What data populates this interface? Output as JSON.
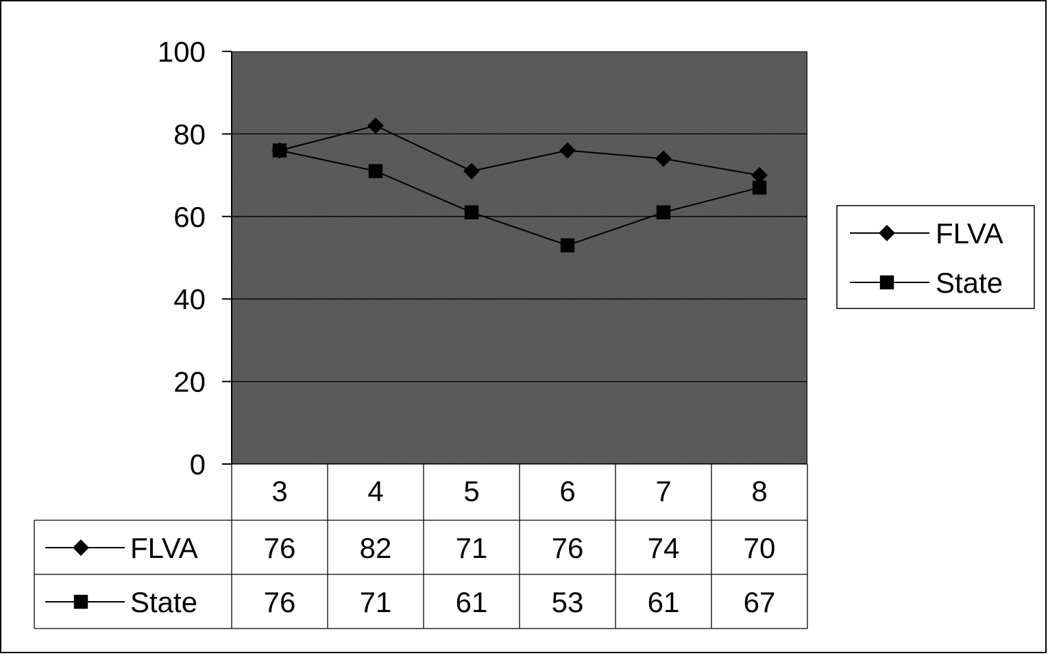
{
  "chart_data": {
    "type": "line",
    "title": "",
    "xlabel": "",
    "ylabel": "",
    "categories": [
      "3",
      "4",
      "5",
      "6",
      "7",
      "8"
    ],
    "ylim": [
      0,
      100
    ],
    "yticks": [
      "100",
      "80",
      "60",
      "40",
      "20",
      "0"
    ],
    "grid": true,
    "legend": "right",
    "data_table": true,
    "series": [
      {
        "name": "FLVA",
        "marker": "diamond",
        "values": [
          76,
          82,
          71,
          76,
          74,
          70
        ]
      },
      {
        "name": "State",
        "marker": "square",
        "values": [
          76,
          71,
          61,
          53,
          61,
          67
        ]
      }
    ],
    "colors": {
      "plot_background": "#5f5f5f",
      "line": "#000000",
      "page": "#ffffff"
    }
  }
}
